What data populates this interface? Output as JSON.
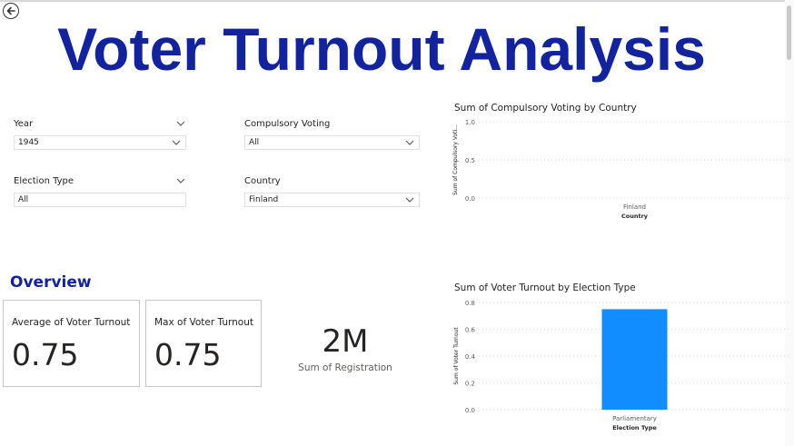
{
  "page": {
    "title": "Voter Turnout Analysis",
    "back_icon": "arrow-left-circle-icon"
  },
  "filters": {
    "year": {
      "label": "Year",
      "value": "1945"
    },
    "compulsory_voting": {
      "label": "Compulsory Voting",
      "value": "All"
    },
    "election_type": {
      "label": "Election Type",
      "value": "All"
    },
    "country": {
      "label": "Country",
      "value": "Finland"
    }
  },
  "overview": {
    "heading": "Overview",
    "avg_card": {
      "label": "Average of Voter Turnout",
      "value": "0.75"
    },
    "max_card": {
      "label": "Max of Voter Turnout",
      "value": "0.75"
    },
    "registration": {
      "value": "2M",
      "label": "Sum of Registration"
    }
  },
  "colors": {
    "accent": "#13239c",
    "bar": "#118dff"
  },
  "chart_data": [
    {
      "type": "bar",
      "title": "Sum of Compulsory Voting by Country",
      "xlabel": "Country",
      "ylabel": "Sum of Compulsory Voti...",
      "categories": [
        "Finland"
      ],
      "values": [
        0
      ],
      "yticks": [
        "1.0",
        "0.5",
        "0.0"
      ],
      "ylim": [
        0,
        1.0
      ]
    },
    {
      "type": "bar",
      "title": "Sum of Voter Turnout by Election Type",
      "xlabel": "Election Type",
      "ylabel": "Sum of Voter Turnout",
      "categories": [
        "Parliamentary"
      ],
      "values": [
        0.75
      ],
      "yticks": [
        "0.8",
        "0.6",
        "0.4",
        "0.2",
        "0.0"
      ],
      "ylim": [
        0,
        0.8
      ]
    }
  ]
}
